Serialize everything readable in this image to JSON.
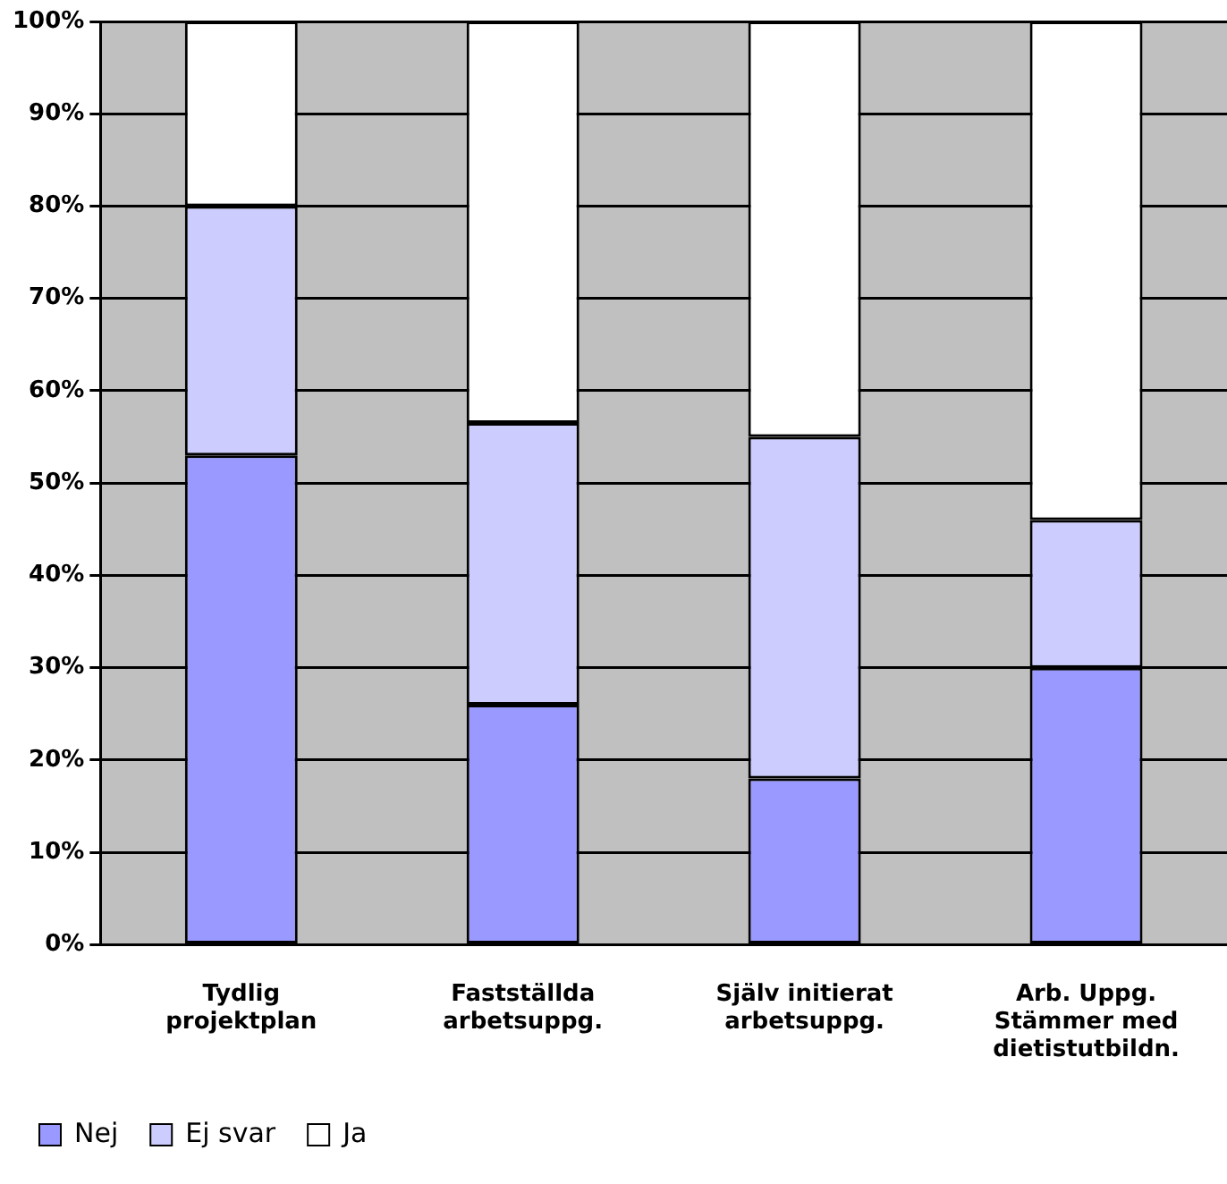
{
  "chart_data": {
    "type": "bar",
    "stacked": true,
    "categories": [
      "Tydlig projektplan",
      "Fastställda arbetsuppg.",
      "Själv initierat arbetsuppg.",
      "Arb. Uppg. Stämmer med dietistutbildn."
    ],
    "series": [
      {
        "name": "Nej",
        "color": "#9999ff",
        "values": [
          53,
          26,
          18,
          30
        ]
      },
      {
        "name": "Ej svar",
        "color": "#ccccff",
        "values": [
          27,
          30.5,
          37,
          16
        ]
      },
      {
        "name": "Ja",
        "color": "#ffffff",
        "values": [
          20,
          43.5,
          45,
          54
        ]
      }
    ],
    "ylim": [
      0,
      100
    ],
    "yticks": [
      {
        "value": 0,
        "label": "0%"
      },
      {
        "value": 10,
        "label": "10%"
      },
      {
        "value": 20,
        "label": "20%"
      },
      {
        "value": 30,
        "label": "30%"
      },
      {
        "value": 40,
        "label": "40%"
      },
      {
        "value": 50,
        "label": "50%"
      },
      {
        "value": 60,
        "label": "60%"
      },
      {
        "value": 70,
        "label": "70%"
      },
      {
        "value": 80,
        "label": "80%"
      },
      {
        "value": 90,
        "label": "90%"
      },
      {
        "value": 100,
        "label": "100%"
      }
    ],
    "grid": "y",
    "legend": "bottom left"
  }
}
